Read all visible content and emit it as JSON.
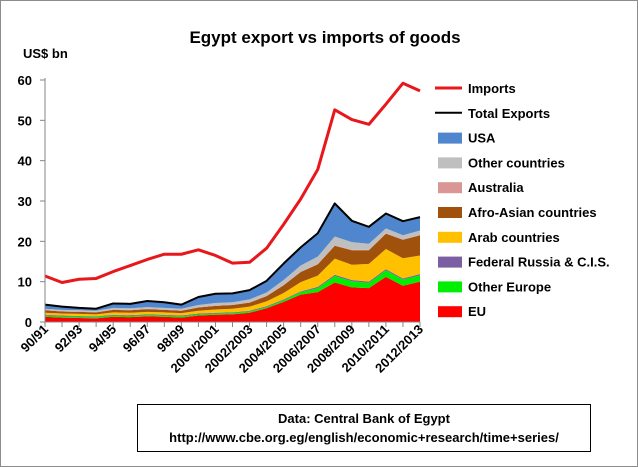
{
  "chart_data": {
    "type": "area",
    "title": "Egypt export vs imports of goods",
    "ylabel": "US$ bn",
    "ylim": [
      0,
      60
    ],
    "yticks": [
      0,
      10,
      20,
      30,
      40,
      50,
      60
    ],
    "grid": false,
    "legend_position": "right",
    "x": [
      "90/91",
      "91/92",
      "92/93",
      "93/94",
      "94/95",
      "95/96",
      "96/97",
      "97/98",
      "98/99",
      "99/00",
      "2000/2001",
      "2001/2002",
      "2002/2003",
      "2003/2004",
      "2004/2005",
      "2005/2006",
      "2006/2007",
      "2007/2008",
      "2008/2009",
      "2009/2010",
      "2010/2011",
      "2011/2012",
      "2012/2013"
    ],
    "xtick_labels": [
      "90/91",
      "92/93",
      "94/95",
      "96/97",
      "98/99",
      "2000/2001",
      "2002/2003",
      "2004/2005",
      "2006/2007",
      "2008/2009",
      "2010/2011",
      "2012/2013"
    ],
    "imports": {
      "name": "Imports",
      "color": "#e8171b",
      "values": [
        11.4,
        9.8,
        10.6,
        10.8,
        12.5,
        14.0,
        15.5,
        16.8,
        16.8,
        17.9,
        16.5,
        14.6,
        14.8,
        18.3,
        24.2,
        30.5,
        37.8,
        52.6,
        50.2,
        49.0,
        54.0,
        59.2,
        57.3
      ]
    },
    "total_exports": {
      "name": "Total Exports",
      "color": "#000000",
      "values": [
        4.3,
        3.8,
        3.5,
        3.3,
        4.6,
        4.5,
        5.2,
        4.9,
        4.3,
        6.2,
        7.0,
        7.1,
        7.9,
        10.2,
        14.5,
        18.5,
        22.0,
        29.4,
        25.1,
        23.6,
        26.9,
        25.0,
        26.0
      ]
    },
    "stacked_series": [
      {
        "name": "EU",
        "color": "#ff0000",
        "values": [
          1.3,
          1.1,
          1.0,
          0.9,
          1.3,
          1.2,
          1.4,
          1.3,
          1.1,
          1.6,
          1.8,
          1.9,
          2.3,
          3.4,
          5.0,
          6.8,
          7.4,
          9.8,
          8.6,
          8.4,
          11.2,
          9.0,
          10.0
        ]
      },
      {
        "name": "Other Europe",
        "color": "#00ee00",
        "values": [
          0.3,
          0.3,
          0.3,
          0.3,
          0.3,
          0.3,
          0.3,
          0.3,
          0.3,
          0.3,
          0.3,
          0.3,
          0.3,
          0.3,
          0.4,
          0.6,
          1.0,
          1.6,
          1.5,
          1.3,
          1.6,
          1.5,
          1.6
        ]
      },
      {
        "name": "Federal Russia & C.I.S.",
        "color": "#7b5fa2",
        "values": [
          0.2,
          0.2,
          0.2,
          0.2,
          0.2,
          0.2,
          0.2,
          0.2,
          0.2,
          0.2,
          0.2,
          0.2,
          0.2,
          0.2,
          0.2,
          0.2,
          0.3,
          0.3,
          0.3,
          0.3,
          0.3,
          0.3,
          0.3
        ]
      },
      {
        "name": "Arab countries",
        "color": "#ffc000",
        "values": [
          0.5,
          0.5,
          0.5,
          0.5,
          0.6,
          0.6,
          0.6,
          0.6,
          0.6,
          0.7,
          0.8,
          0.9,
          1.0,
          1.2,
          1.6,
          2.3,
          2.8,
          4.0,
          3.8,
          4.4,
          5.0,
          5.0,
          4.6
        ]
      },
      {
        "name": "Afro-Asian countries",
        "color": "#a0510c",
        "values": [
          0.6,
          0.5,
          0.5,
          0.5,
          0.6,
          0.6,
          0.7,
          0.6,
          0.6,
          0.8,
          0.9,
          0.9,
          1.0,
          1.3,
          1.9,
          2.5,
          2.8,
          3.2,
          3.6,
          3.4,
          3.8,
          4.6,
          5.0
        ]
      },
      {
        "name": "Australia",
        "color": "#d99694",
        "values": [
          0.1,
          0.1,
          0.1,
          0.1,
          0.1,
          0.1,
          0.1,
          0.1,
          0.1,
          0.1,
          0.1,
          0.1,
          0.1,
          0.1,
          0.1,
          0.1,
          0.1,
          0.1,
          0.1,
          0.1,
          0.1,
          0.1,
          0.1
        ]
      },
      {
        "name": "Other countries",
        "color": "#bfbfbf",
        "values": [
          0.3,
          0.3,
          0.3,
          0.3,
          0.4,
          0.4,
          0.4,
          0.4,
          0.4,
          0.5,
          0.6,
          0.6,
          0.7,
          0.8,
          1.2,
          1.5,
          1.8,
          2.2,
          1.9,
          1.5,
          1.2,
          1.0,
          1.1
        ]
      },
      {
        "name": "USA",
        "color": "#4f86cd",
        "values": [
          1.0,
          0.8,
          0.6,
          0.5,
          1.1,
          1.1,
          1.5,
          1.4,
          1.0,
          2.0,
          2.3,
          2.2,
          2.3,
          2.9,
          4.1,
          4.5,
          5.8,
          8.2,
          5.3,
          4.2,
          3.7,
          3.5,
          3.4
        ]
      }
    ],
    "legend": [
      "Imports",
      "Total Exports",
      "USA",
      "Other countries",
      "Australia",
      "Afro-Asian countries",
      "Arab countries",
      "Federal Russia & C.I.S.",
      "Other Europe",
      "EU"
    ]
  },
  "source": {
    "line1": "Data: Central Bank of Egypt",
    "line2": "http://www.cbe.org.eg/english/economic+research/time+series/"
  }
}
